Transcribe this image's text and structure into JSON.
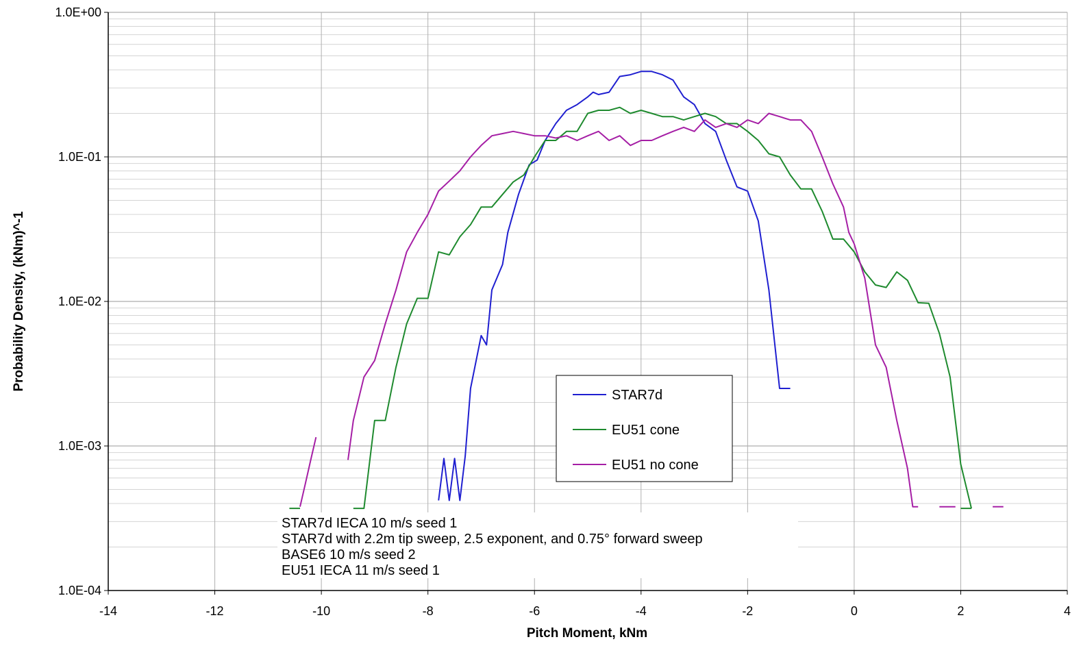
{
  "chart_data": {
    "type": "line",
    "title": "",
    "xlabel": "Pitch Moment, kNm",
    "ylabel": "Probability Density, (kNm)^-1",
    "xlim": [
      -14,
      4
    ],
    "ylim": [
      0.0001,
      1
    ],
    "yscale": "log",
    "grid": true,
    "legend_position": "lower-center",
    "x_ticks": [
      "-14",
      "-12",
      "-10",
      "-8",
      "-6",
      "-4",
      "-2",
      "0",
      "2",
      "4"
    ],
    "y_ticks": [
      "1.0E-04",
      "1.0E-03",
      "1.0E-02",
      "1.0E-01",
      "1.0E+00"
    ],
    "annotation_lines": [
      "STAR7d IECA 10 m/s seed 1",
      "STAR7d with 2.2m tip sweep, 2.5 exponent, and 0.75° forward sweep",
      "BASE6 10 m/s seed 2",
      "EU51 IECA 11 m/s seed 1"
    ],
    "series": [
      {
        "name": "STAR7d",
        "color": "#1f1fd0",
        "segments": [
          [
            [
              -7.8,
              0.00042
            ],
            [
              -7.7,
              0.00082
            ],
            [
              -7.6,
              0.00042
            ],
            [
              -7.5,
              0.00082
            ],
            [
              -7.4,
              0.00042
            ],
            [
              -7.3,
              0.00085
            ],
            [
              -7.2,
              0.0025
            ],
            [
              -7.0,
              0.0058
            ],
            [
              -6.9,
              0.005
            ],
            [
              -6.8,
              0.012
            ],
            [
              -6.6,
              0.018
            ],
            [
              -6.5,
              0.03
            ],
            [
              -6.3,
              0.055
            ],
            [
              -6.1,
              0.088
            ],
            [
              -5.95,
              0.095
            ],
            [
              -5.8,
              0.13
            ],
            [
              -5.6,
              0.17
            ],
            [
              -5.4,
              0.21
            ],
            [
              -5.2,
              0.23
            ],
            [
              -5.0,
              0.26
            ],
            [
              -4.9,
              0.28
            ],
            [
              -4.8,
              0.27
            ],
            [
              -4.6,
              0.28
            ],
            [
              -4.4,
              0.36
            ],
            [
              -4.2,
              0.37
            ],
            [
              -4.0,
              0.39
            ],
            [
              -3.8,
              0.39
            ],
            [
              -3.6,
              0.37
            ],
            [
              -3.4,
              0.34
            ],
            [
              -3.2,
              0.26
            ],
            [
              -3.0,
              0.23
            ],
            [
              -2.8,
              0.17
            ],
            [
              -2.6,
              0.15
            ],
            [
              -2.4,
              0.095
            ],
            [
              -2.2,
              0.062
            ],
            [
              -2.0,
              0.058
            ],
            [
              -1.8,
              0.036
            ],
            [
              -1.6,
              0.012
            ],
            [
              -1.4,
              0.0025
            ],
            [
              -1.2,
              0.0025
            ]
          ]
        ]
      },
      {
        "name": "EU51 cone",
        "color": "#1e8a2e",
        "segments": [
          [
            [
              -10.6,
              0.00037
            ],
            [
              -10.4,
              0.00037
            ]
          ],
          [
            [
              -9.4,
              0.00037
            ],
            [
              -9.2,
              0.00037
            ],
            [
              -9.0,
              0.0015
            ],
            [
              -8.8,
              0.0015
            ],
            [
              -8.6,
              0.0035
            ],
            [
              -8.4,
              0.007
            ],
            [
              -8.2,
              0.0105
            ],
            [
              -8.0,
              0.0105
            ],
            [
              -7.8,
              0.022
            ],
            [
              -7.6,
              0.021
            ],
            [
              -7.4,
              0.028
            ],
            [
              -7.2,
              0.034
            ],
            [
              -7.0,
              0.045
            ],
            [
              -6.8,
              0.045
            ],
            [
              -6.6,
              0.055
            ],
            [
              -6.4,
              0.067
            ],
            [
              -6.2,
              0.075
            ],
            [
              -6.0,
              0.1
            ],
            [
              -5.8,
              0.13
            ],
            [
              -5.6,
              0.13
            ],
            [
              -5.4,
              0.15
            ],
            [
              -5.2,
              0.15
            ],
            [
              -5.0,
              0.2
            ],
            [
              -4.8,
              0.21
            ],
            [
              -4.6,
              0.21
            ],
            [
              -4.4,
              0.22
            ],
            [
              -4.2,
              0.2
            ],
            [
              -4.0,
              0.21
            ],
            [
              -3.8,
              0.2
            ],
            [
              -3.6,
              0.19
            ],
            [
              -3.4,
              0.19
            ],
            [
              -3.2,
              0.18
            ],
            [
              -3.0,
              0.19
            ],
            [
              -2.8,
              0.2
            ],
            [
              -2.6,
              0.19
            ],
            [
              -2.4,
              0.17
            ],
            [
              -2.2,
              0.17
            ],
            [
              -2.0,
              0.15
            ],
            [
              -1.8,
              0.13
            ],
            [
              -1.6,
              0.105
            ],
            [
              -1.4,
              0.1
            ],
            [
              -1.2,
              0.075
            ],
            [
              -1.0,
              0.06
            ],
            [
              -0.8,
              0.06
            ],
            [
              -0.6,
              0.042
            ],
            [
              -0.4,
              0.027
            ],
            [
              -0.2,
              0.027
            ],
            [
              0.0,
              0.022
            ],
            [
              0.2,
              0.016
            ],
            [
              0.4,
              0.013
            ],
            [
              0.6,
              0.0125
            ],
            [
              0.8,
              0.016
            ],
            [
              1.0,
              0.014
            ],
            [
              1.2,
              0.0098
            ],
            [
              1.4,
              0.0097
            ],
            [
              1.6,
              0.006
            ],
            [
              1.8,
              0.003
            ],
            [
              2.0,
              0.00075
            ],
            [
              2.2,
              0.00037
            ]
          ],
          [
            [
              2.0,
              0.00037
            ],
            [
              2.2,
              0.00037
            ]
          ]
        ]
      },
      {
        "name": "EU51 no cone",
        "color": "#a51ea5",
        "segments": [
          [
            [
              -10.4,
              0.00038
            ],
            [
              -10.3,
              0.00055
            ],
            [
              -10.2,
              0.0008
            ],
            [
              -10.1,
              0.00115
            ]
          ],
          [
            [
              -9.5,
              0.0008
            ],
            [
              -9.4,
              0.0015
            ],
            [
              -9.2,
              0.003
            ],
            [
              -9.0,
              0.0039
            ],
            [
              -8.8,
              0.007
            ],
            [
              -8.6,
              0.012
            ],
            [
              -8.4,
              0.022
            ],
            [
              -8.2,
              0.03
            ],
            [
              -8.0,
              0.04
            ],
            [
              -7.8,
              0.058
            ],
            [
              -7.6,
              0.068
            ],
            [
              -7.4,
              0.08
            ],
            [
              -7.2,
              0.1
            ],
            [
              -7.0,
              0.12
            ],
            [
              -6.8,
              0.14
            ],
            [
              -6.6,
              0.145
            ],
            [
              -6.4,
              0.15
            ],
            [
              -6.2,
              0.145
            ],
            [
              -6.0,
              0.14
            ],
            [
              -5.8,
              0.14
            ],
            [
              -5.6,
              0.135
            ],
            [
              -5.4,
              0.14
            ],
            [
              -5.2,
              0.13
            ],
            [
              -5.0,
              0.14
            ],
            [
              -4.8,
              0.15
            ],
            [
              -4.6,
              0.13
            ],
            [
              -4.4,
              0.14
            ],
            [
              -4.2,
              0.12
            ],
            [
              -4.0,
              0.13
            ],
            [
              -3.8,
              0.13
            ],
            [
              -3.6,
              0.14
            ],
            [
              -3.4,
              0.15
            ],
            [
              -3.2,
              0.16
            ],
            [
              -3.0,
              0.15
            ],
            [
              -2.8,
              0.18
            ],
            [
              -2.6,
              0.16
            ],
            [
              -2.4,
              0.17
            ],
            [
              -2.2,
              0.16
            ],
            [
              -2.0,
              0.18
            ],
            [
              -1.8,
              0.17
            ],
            [
              -1.6,
              0.2
            ],
            [
              -1.4,
              0.19
            ],
            [
              -1.2,
              0.18
            ],
            [
              -1.0,
              0.18
            ],
            [
              -0.8,
              0.15
            ],
            [
              -0.6,
              0.1
            ],
            [
              -0.4,
              0.065
            ],
            [
              -0.2,
              0.045
            ],
            [
              -0.1,
              0.03
            ],
            [
              0.0,
              0.025
            ],
            [
              0.2,
              0.0145
            ],
            [
              0.4,
              0.005
            ],
            [
              0.6,
              0.0035
            ],
            [
              0.8,
              0.0015
            ],
            [
              1.0,
              0.0007
            ],
            [
              1.1,
              0.00038
            ],
            [
              1.2,
              0.00038
            ]
          ],
          [
            [
              1.6,
              0.00038
            ],
            [
              1.9,
              0.00038
            ]
          ],
          [
            [
              2.6,
              0.00038
            ],
            [
              2.8,
              0.00038
            ]
          ]
        ]
      }
    ]
  }
}
